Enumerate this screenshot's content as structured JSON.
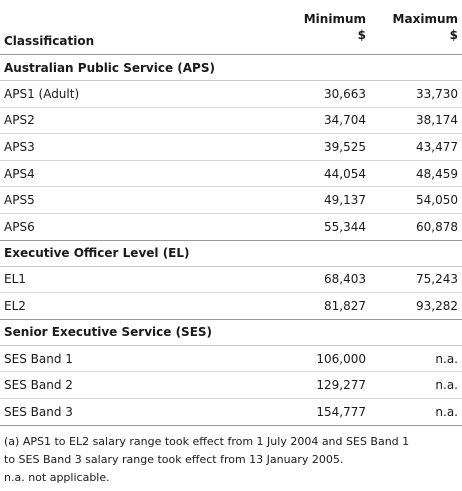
{
  "header": {
    "col_min": "Minimum",
    "col_max": "Maximum",
    "col_class": "Classification",
    "unit_min": "$",
    "unit_max": "$"
  },
  "sections": [
    {
      "title": "Australian Public Service (APS)",
      "rows": [
        {
          "name": "APS1 (Adult)",
          "min": "30,663",
          "max": "33,730"
        },
        {
          "name": "APS2",
          "min": "34,704",
          "max": "38,174"
        },
        {
          "name": "APS3",
          "min": "39,525",
          "max": "43,477"
        },
        {
          "name": "APS4",
          "min": "44,054",
          "max": "48,459"
        },
        {
          "name": "APS5",
          "min": "49,137",
          "max": "54,050"
        },
        {
          "name": "APS6",
          "min": "55,344",
          "max": "60,878"
        }
      ]
    },
    {
      "title": "Executive Officer Level (EL)",
      "rows": [
        {
          "name": "EL1",
          "min": "68,403",
          "max": "75,243"
        },
        {
          "name": "EL2",
          "min": "81,827",
          "max": "93,282"
        }
      ]
    },
    {
      "title": "Senior Executive Service (SES)",
      "rows": [
        {
          "name": "SES Band 1",
          "min": "106,000",
          "max": "n.a."
        },
        {
          "name": "SES Band 2",
          "min": "129,277",
          "max": "n.a."
        },
        {
          "name": "SES Band 3",
          "min": "154,777",
          "max": "n.a."
        }
      ]
    }
  ],
  "notes": [
    "(a) APS1 to EL2 salary range took effect from 1 July 2004 and SES Band 1",
    "to SES Band 3 salary range took effect from 13 January 2005.",
    "n.a. not applicable."
  ]
}
